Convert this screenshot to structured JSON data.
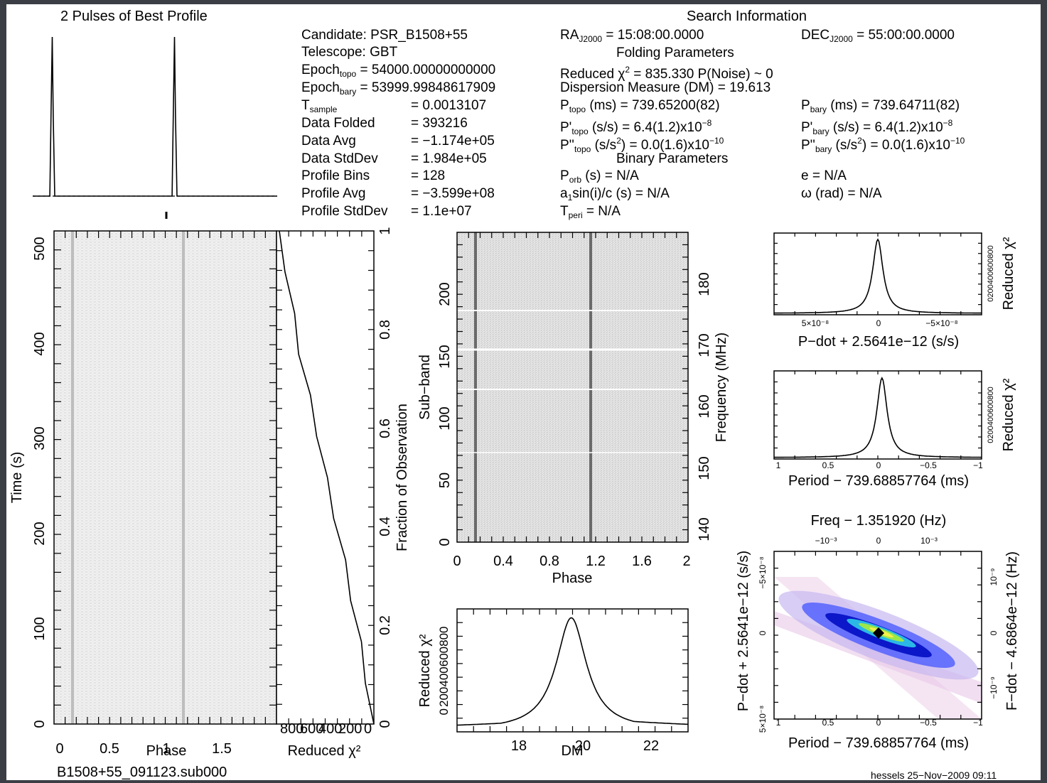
{
  "header": {
    "profile_title": "2 Pulses of Best Profile",
    "search_title": "Search Information",
    "folding_title": "Folding Parameters",
    "binary_title": "Binary Parameters"
  },
  "info": {
    "candidate": "Candidate:  PSR_B1508+55",
    "telescope": "Telescope:  GBT",
    "epoch_topo": " = 54000.00000000000",
    "epoch_bary": " = 53999.99848617909",
    "t_sample": "=  0.0013107",
    "data_folded_label": "Data Folded",
    "data_folded": "=  393216",
    "data_avg_label": "Data Avg",
    "data_avg": "=  −1.174e+05",
    "data_std_label": "Data StdDev",
    "data_std": "=  1.984e+05",
    "prof_bins_label": "Profile Bins",
    "prof_bins": "=  128",
    "prof_avg_label": "Profile Avg",
    "prof_avg": "=  −3.599e+08",
    "prof_std_label": "Profile StdDev",
    "prof_std": "=  1.1e+07",
    "ra": " = 15:08:00.0000",
    "dec": " = 55:00:00.0000",
    "reduced_chi": " = 835.330    P(Noise) ~ 0",
    "dm": "Dispersion Measure (DM) = 19.613",
    "p_topo": " (ms) =   739.65200(82)",
    "p_bary": " (ms) =   739.64711(82)",
    "pd_topo": " (s/s) =   6.4(1.2)x10",
    "pd_bary": " (s/s) =   6.4(1.2)x10",
    "pdd_topo": " (s/s",
    "pdd_topo_end": ") = 0.0(1.6)x10",
    "pdd_bary": " (s/s",
    "pdd_bary_end": ") = 0.0(1.6)x10",
    "porb": " (s) = N/A",
    "a1": "sin(i)/c (s) = N/A",
    "tperi": " = N/A",
    "ecc": "e = N/A",
    "omega": "ω (rad) = N/A"
  },
  "footer": {
    "filename": "B1508+55_091123.sub000",
    "signature": "hessels 25−Nov−2009 09:11"
  },
  "chart_data": [
    {
      "type": "line",
      "title": "2 Pulses of Best Profile",
      "x": [
        0.0,
        0.14,
        0.152,
        0.16,
        0.168,
        0.18,
        1.0,
        1.14,
        1.152,
        1.16,
        1.168,
        1.18,
        2.0
      ],
      "y": [
        0.0,
        0.0,
        0.6,
        1.0,
        0.5,
        0.0,
        0.0,
        0.0,
        0.6,
        1.0,
        0.5,
        0.0,
        0.0
      ],
      "xlabel": "",
      "ylabel": ""
    },
    {
      "type": "heatmap",
      "xlabel": "Phase",
      "ylabel": "Time (s)",
      "xlim": [
        0,
        2
      ],
      "ylim": [
        0,
        520
      ],
      "x_ticks": [
        "0",
        "0.5",
        "1",
        "1.5"
      ],
      "y_ticks": [
        "0",
        "100",
        "200",
        "300",
        "400",
        "500"
      ],
      "pulse_phases": [
        0.16,
        1.16
      ]
    },
    {
      "type": "line",
      "xlabel": "Reduced χ²",
      "ylabel": "Fraction of Observation",
      "x_ticks": [
        "800",
        "600",
        "400",
        "200",
        "0"
      ],
      "y_ticks": [
        "0",
        "0.2",
        "0.4",
        "0.6",
        "0.8",
        "1"
      ],
      "reduced_chi2": [
        0,
        50,
        110,
        180,
        250,
        330,
        410,
        480,
        560,
        640,
        700,
        760,
        835
      ],
      "fraction": [
        0,
        0.083,
        0.167,
        0.25,
        0.333,
        0.417,
        0.5,
        0.583,
        0.667,
        0.75,
        0.833,
        0.917,
        1.0
      ]
    },
    {
      "type": "heatmap",
      "xlabel": "Phase",
      "ylabel": "Sub−band",
      "y2label": "Frequency (MHz)",
      "xlim": [
        0,
        2
      ],
      "ylim": [
        0,
        250
      ],
      "x_ticks": [
        "0",
        "0.4",
        "0.8",
        "1.2",
        "1.6",
        "2"
      ],
      "y_ticks": [
        "0",
        "50",
        "100",
        "150",
        "200"
      ],
      "y2_ticks": [
        "140",
        "150",
        "160",
        "170",
        "180"
      ],
      "pulse_phases": [
        0.16,
        1.16
      ]
    },
    {
      "type": "line",
      "xlabel": "DM",
      "ylabel": "Reduced χ²",
      "xlim": [
        16.2,
        23.1
      ],
      "ylim": [
        0,
        900
      ],
      "x_ticks": [
        "18",
        "20",
        "22"
      ],
      "y_ticks": [
        "0",
        "200",
        "400",
        "600",
        "800"
      ],
      "peak_dm": 19.613,
      "peak_chi2": 835
    },
    {
      "type": "line",
      "xlabel": "P−dot + 2.5641e−12 (s/s)",
      "ylabel": "Reduced χ²",
      "x_ticks": [
        "5×10⁻⁸",
        "0",
        "−5×10⁻⁸"
      ],
      "y_ticks": [
        "0",
        "200",
        "400",
        "600",
        "800"
      ],
      "peak_x": 0,
      "peak_chi2": 835
    },
    {
      "type": "line",
      "xlabel": "Period − 739.68857764 (ms)",
      "ylabel": "Reduced χ²",
      "x_ticks": [
        "1",
        "0.5",
        "0",
        "−0.5",
        "−1"
      ],
      "y_ticks": [
        "0",
        "200",
        "400",
        "600",
        "800"
      ],
      "peak_x": -0.04,
      "peak_chi2": 835
    },
    {
      "type": "heatmap",
      "title": "Freq − 1.351920 (Hz)",
      "xlabel": "Period − 739.68857764 (ms)",
      "ylabel": "P−dot + 2.5641e−12 (s/s)",
      "y2label": "F−dot − 4.6864e−12 (Hz)",
      "x_ticks": [
        "1",
        "0.5",
        "0",
        "−0.5",
        "−1"
      ],
      "x2_ticks": [
        "−10⁻³",
        "0",
        "10⁻³"
      ],
      "y_ticks": [
        "5×10⁻⁸",
        "0",
        "−5×10⁻⁸"
      ],
      "y2_ticks": [
        "−10⁻⁹",
        "0",
        "10⁻⁹"
      ]
    }
  ]
}
